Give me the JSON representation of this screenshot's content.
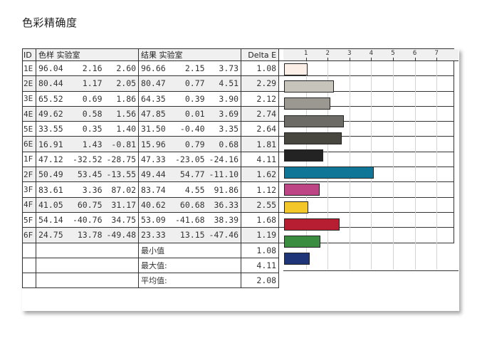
{
  "page": {
    "title": "色彩精确度"
  },
  "table": {
    "headers": {
      "id": "ID",
      "sample": "色样 实验室",
      "result": "结果 实验室",
      "delta": "Delta E"
    },
    "rows": [
      {
        "id": "1E",
        "s": [
          "96.04",
          "2.16",
          "2.60"
        ],
        "r": [
          "96.66",
          "2.15",
          "3.73"
        ],
        "de": "1.08"
      },
      {
        "id": "2E",
        "s": [
          "80.44",
          "1.17",
          "2.05"
        ],
        "r": [
          "80.47",
          "0.77",
          "4.51"
        ],
        "de": "2.29"
      },
      {
        "id": "3E",
        "s": [
          "65.52",
          "0.69",
          "1.86"
        ],
        "r": [
          "64.35",
          "0.39",
          "3.90"
        ],
        "de": "2.12"
      },
      {
        "id": "4E",
        "s": [
          "49.62",
          "0.58",
          "1.56"
        ],
        "r": [
          "47.85",
          "0.01",
          "3.69"
        ],
        "de": "2.74"
      },
      {
        "id": "5E",
        "s": [
          "33.55",
          "0.35",
          "1.40"
        ],
        "r": [
          "31.50",
          "-0.40",
          "3.35"
        ],
        "de": "2.64"
      },
      {
        "id": "6E",
        "s": [
          "16.91",
          "1.43",
          "-0.81"
        ],
        "r": [
          "15.96",
          "0.79",
          "0.68"
        ],
        "de": "1.81"
      },
      {
        "id": "1F",
        "s": [
          "47.12",
          "-32.52",
          "-28.75"
        ],
        "r": [
          "47.33",
          "-23.05",
          "-24.16"
        ],
        "de": "4.11"
      },
      {
        "id": "2F",
        "s": [
          "50.49",
          "53.45",
          "-13.55"
        ],
        "r": [
          "49.44",
          "54.77",
          "-11.10"
        ],
        "de": "1.62"
      },
      {
        "id": "3F",
        "s": [
          "83.61",
          "3.36",
          "87.02"
        ],
        "r": [
          "83.74",
          "4.55",
          "91.86"
        ],
        "de": "1.12"
      },
      {
        "id": "4F",
        "s": [
          "41.05",
          "60.75",
          "31.17"
        ],
        "r": [
          "40.62",
          "60.68",
          "36.33"
        ],
        "de": "2.55"
      },
      {
        "id": "5F",
        "s": [
          "54.14",
          "-40.76",
          "34.75"
        ],
        "r": [
          "53.09",
          "-41.68",
          "38.39"
        ],
        "de": "1.68"
      },
      {
        "id": "6F",
        "s": [
          "24.75",
          "13.78",
          "-49.48"
        ],
        "r": [
          "23.33",
          "13.15",
          "-47.46"
        ],
        "de": "1.19"
      }
    ],
    "stats": [
      {
        "label": "最小值",
        "value": "1.08"
      },
      {
        "label": "最大值:",
        "value": "4.11"
      },
      {
        "label": "平均值:",
        "value": "2.08"
      }
    ]
  },
  "chart_data": {
    "type": "bar",
    "orientation": "horizontal",
    "title": "色彩精确度",
    "xlabel": "Delta E",
    "ylabel": "ID",
    "xlim": [
      0,
      8
    ],
    "xticks": [
      1,
      2,
      3,
      4,
      5,
      6,
      7
    ],
    "grid": true,
    "categories": [
      "1E",
      "2E",
      "3E",
      "4E",
      "5E",
      "6E",
      "1F",
      "2F",
      "3F",
      "4F",
      "5F",
      "6F"
    ],
    "values": [
      1.08,
      2.29,
      2.12,
      2.74,
      2.64,
      1.81,
      4.11,
      1.62,
      1.12,
      2.55,
      1.68,
      1.19
    ],
    "colors": [
      "#fbefe8",
      "#c7c4bb",
      "#9a9890",
      "#6c6b66",
      "#47473f",
      "#232323",
      "#0f7697",
      "#be4585",
      "#f3c72a",
      "#b81e32",
      "#3a8d3f",
      "#1e3578"
    ],
    "summary": {
      "min": 1.08,
      "max": 4.11,
      "mean": 2.08
    }
  }
}
